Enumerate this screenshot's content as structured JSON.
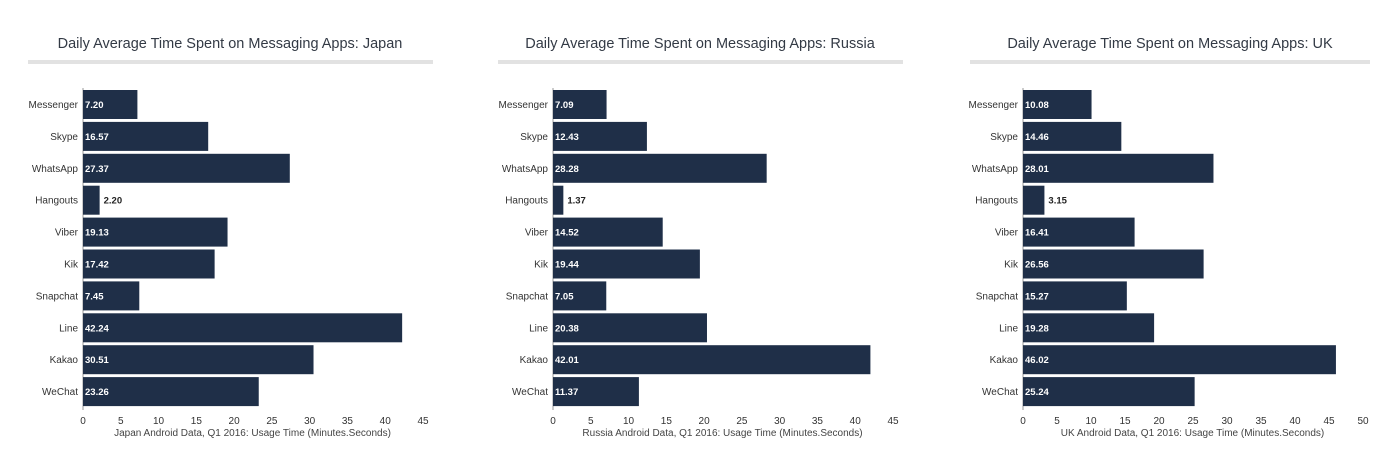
{
  "theme": {
    "bar_color": "#1f2f48",
    "value_label_inside_color": "#ffffff",
    "value_label_outside_color": "#222222",
    "axis_color": "#9a9a9a"
  },
  "chart_data": [
    {
      "type": "bar",
      "orientation": "horizontal",
      "title": "Daily Average Time Spent on Messaging Apps: Japan",
      "xlabel": "Japan Android Data, Q1 2016: Usage Time (Minutes.Seconds)",
      "ylabel": "",
      "categories": [
        "Messenger",
        "Skype",
        "WhatsApp",
        "Hangouts",
        "Viber",
        "Kik",
        "Snapchat",
        "Line",
        "Kakao",
        "WeChat"
      ],
      "values": [
        7.2,
        16.57,
        27.37,
        2.2,
        19.13,
        17.42,
        7.45,
        42.24,
        30.51,
        23.26
      ],
      "value_labels": [
        "7.20",
        "16.57",
        "27.37",
        "2.20",
        "19.13",
        "17.42",
        "7.45",
        "42.24",
        "30.51",
        "23.26"
      ],
      "xlim": [
        0,
        45
      ],
      "xticks": [
        0,
        5,
        10,
        15,
        20,
        25,
        30,
        35,
        40,
        45
      ],
      "grid": false,
      "legend": "none"
    },
    {
      "type": "bar",
      "orientation": "horizontal",
      "title": "Daily Average Time Spent on Messaging Apps: Russia",
      "xlabel": "Russia Android Data, Q1 2016: Usage Time (Minutes.Seconds)",
      "ylabel": "",
      "categories": [
        "Messenger",
        "Skype",
        "WhatsApp",
        "Hangouts",
        "Viber",
        "Kik",
        "Snapchat",
        "Line",
        "Kakao",
        "WeChat"
      ],
      "values": [
        7.09,
        12.43,
        28.28,
        1.37,
        14.52,
        19.44,
        7.05,
        20.38,
        42.01,
        11.37
      ],
      "value_labels": [
        "7.09",
        "12.43",
        "28.28",
        "1.37",
        "14.52",
        "19.44",
        "7.05",
        "20.38",
        "42.01",
        "11.37"
      ],
      "xlim": [
        0,
        45
      ],
      "xticks": [
        0,
        5,
        10,
        15,
        20,
        25,
        30,
        35,
        40,
        45
      ],
      "grid": false,
      "legend": "none"
    },
    {
      "type": "bar",
      "orientation": "horizontal",
      "title": "Daily Average Time Spent on Messaging Apps: UK",
      "xlabel": "UK Android Data, Q1 2016: Usage Time (Minutes.Seconds)",
      "ylabel": "",
      "categories": [
        "Messenger",
        "Skype",
        "WhatsApp",
        "Hangouts",
        "Viber",
        "Kik",
        "Snapchat",
        "Line",
        "Kakao",
        "WeChat"
      ],
      "values": [
        10.08,
        14.46,
        28.01,
        3.15,
        16.41,
        26.56,
        15.27,
        19.28,
        46.02,
        25.24
      ],
      "value_labels": [
        "10.08",
        "14.46",
        "28.01",
        "3.15",
        "16.41",
        "26.56",
        "15.27",
        "19.28",
        "46.02",
        "25.24"
      ],
      "xlim": [
        0,
        50
      ],
      "xticks": [
        0,
        5,
        10,
        15,
        20,
        25,
        30,
        35,
        40,
        45,
        50
      ],
      "grid": false,
      "legend": "none"
    }
  ]
}
